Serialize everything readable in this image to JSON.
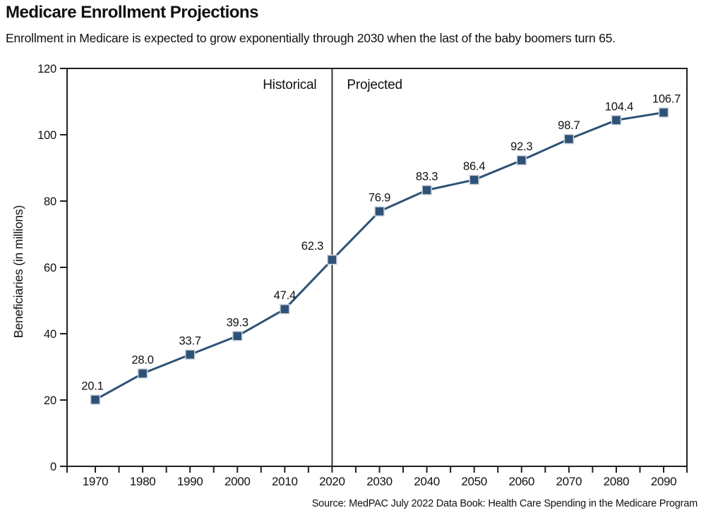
{
  "page": {
    "title": "Medicare Enrollment Projections",
    "subtitle": "Enrollment in Medicare is expected to grow exponentially through 2030 when the last of the baby boomers turn 65.",
    "source": "Source: MedPAC July 2022 Data Book: Health Care Spending in the Medicare Program"
  },
  "chart_data": {
    "type": "line",
    "title": "Medicare Enrollment Projections",
    "subtitle": "Enrollment in Medicare is expected to grow exponentially through 2030 when the last of the baby boomers turn 65.",
    "xlabel": "",
    "ylabel": "Beneficiaries (in millions)",
    "x": [
      1970,
      1980,
      1990,
      2000,
      2010,
      2020,
      2030,
      2040,
      2050,
      2060,
      2070,
      2080,
      2090
    ],
    "values": [
      20.1,
      28.0,
      33.7,
      39.3,
      47.4,
      62.3,
      76.9,
      83.3,
      86.4,
      92.3,
      98.7,
      104.4,
      106.7
    ],
    "point_labels": [
      "20.1",
      "28.0",
      "33.7",
      "39.3",
      "47.4",
      "62.3",
      "76.9",
      "83.3",
      "86.4",
      "92.3",
      "98.7",
      "104.4",
      "106.7"
    ],
    "label_dx": [
      -4,
      0,
      0,
      0,
      0,
      -28,
      0,
      0,
      0,
      0,
      0,
      4,
      4
    ],
    "ylim": [
      0,
      120
    ],
    "y_ticks": [
      0,
      20,
      40,
      60,
      80,
      100,
      120
    ],
    "x_tick_labels": [
      "1970",
      "1980",
      "1990",
      "2000",
      "2010",
      "2020",
      "2030",
      "2040",
      "2050",
      "2060",
      "2070",
      "2080",
      "2090"
    ],
    "minor_x_tick_step_years": 5,
    "divider_year": 2020,
    "region_labels": {
      "left": "Historical",
      "right": "Projected"
    },
    "grid": false,
    "legend": "none",
    "source": "Source: MedPAC July 2022 Data Book: Health Care Spending in the Medicare Program",
    "colors": {
      "line": "#2E5277",
      "marker_fill": "#2E5277",
      "marker_stroke": "#CCD4DC",
      "axis": "#231F20",
      "text": "#111111"
    }
  }
}
